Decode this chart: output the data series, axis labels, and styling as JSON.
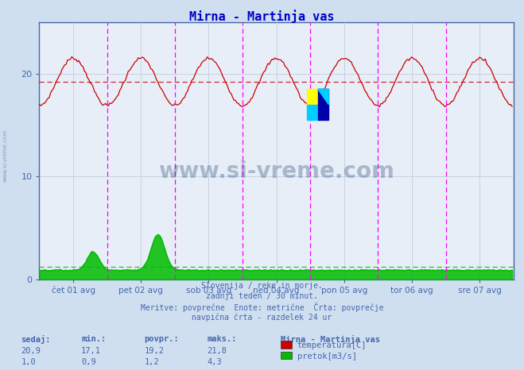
{
  "title": "Mirna - Martinja vas",
  "title_color": "#0000cc",
  "bg_color": "#d0dff0",
  "plot_bg_color": "#e8eef8",
  "grid_color": "#b8c8d8",
  "x_tick_labels": [
    "čet 01 avg",
    "pet 02 avg",
    "sob 03 avg",
    "ned 04 avg",
    "pon 05 avg",
    "tor 06 avg",
    "sre 07 avg"
  ],
  "y_ticks": [
    0,
    10,
    20
  ],
  "ylim": [
    0,
    25
  ],
  "xlim": [
    0,
    336
  ],
  "temp_color": "#cc0000",
  "flow_color": "#00bb00",
  "vline_color": "#ff00ff",
  "hline_temp_y": 19.2,
  "hline_flow_y": 1.2,
  "footer_lines": [
    "Slovenija / reke in morje.",
    "zadnji teden / 30 minut.",
    "Meritve: povprečne  Enote: metrične  Črta: povprečje",
    "navpična črta - razdelek 24 ur"
  ],
  "footer_color": "#4466aa",
  "watermark": "www.si-vreme.com",
  "watermark_color": "#1a3a6a",
  "stats_headers": [
    "sedaj:",
    "min.:",
    "povpr.:",
    "maks.:"
  ],
  "stats_temp": [
    "20,9",
    "17,1",
    "19,2",
    "21,8"
  ],
  "stats_flow": [
    "1,0",
    "0,9",
    "1,2",
    "4,3"
  ],
  "legend_title": "Mirna - Martinja vas",
  "legend_items": [
    "temperatura[C]",
    "pretok[m3/s]"
  ],
  "legend_colors": [
    "#cc0000",
    "#00bb00"
  ],
  "num_points": 336,
  "axis_color": "#4466aa",
  "tick_color": "#4466aa"
}
